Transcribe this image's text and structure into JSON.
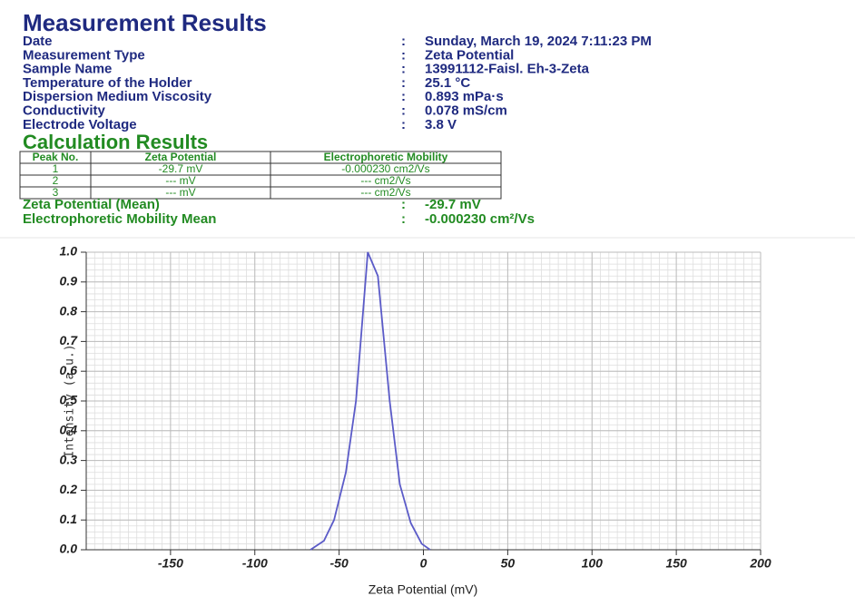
{
  "header": {
    "title": "Measurement Results",
    "separator": ":"
  },
  "info": [
    {
      "label": "Date",
      "value": "Sunday,  March  19, 2024 7:11:23 PM"
    },
    {
      "label": "Measurement Type",
      "value": "Zeta Potential"
    },
    {
      "label": "Sample Name",
      "value": "13991112-Faisl. Eh-3-Zeta"
    },
    {
      "label": "Temperature of the Holder",
      "value": "25.1 °C"
    },
    {
      "label": "Dispersion Medium Viscosity",
      "value": "0.893 mPa·s"
    },
    {
      "label": "Conductivity",
      "value": "0.078 mS/cm"
    },
    {
      "label": "Electrode Voltage",
      "value": "3.8 V"
    }
  ],
  "calculation": {
    "title": "Calculation Results",
    "table": {
      "header": [
        "Peak No.",
        "Zeta Potential",
        "Electrophoretic Mobility"
      ],
      "rows": [
        [
          "1",
          "-29.7 mV",
          "-0.000230 cm2/Vs"
        ],
        [
          "2",
          "--- mV",
          "--- cm2/Vs"
        ],
        [
          "3",
          "--- mV",
          "--- cm2/Vs"
        ]
      ]
    },
    "means": [
      {
        "label": "Zeta Potential (Mean)",
        "value": "-29.7 mV"
      },
      {
        "label": "Electrophoretic Mobility Mean",
        "value": "-0.000230 cm²/Vs"
      }
    ]
  },
  "chart_data": {
    "type": "line",
    "x_label": "Zeta Potential (mV)",
    "y_label": "Intensity (a.u.)",
    "x": [
      -67,
      -59,
      -53,
      -46,
      -40,
      -33,
      -27,
      -20,
      -14,
      -7.5,
      -1,
      4
    ],
    "values": [
      0,
      0.03,
      0.1,
      0.26,
      0.5,
      1.0,
      0.92,
      0.5,
      0.22,
      0.09,
      0.02,
      0
    ],
    "color": "#5b5bc8",
    "xlim": [
      -200,
      200
    ],
    "xticks": [
      -150,
      -100,
      -50,
      0,
      50,
      100,
      150,
      200
    ],
    "ylim": [
      0,
      1
    ],
    "yticks": [
      {
        "value": 0,
        "label": "0.0"
      },
      0.1,
      0.2,
      0.3,
      0.4,
      0.5,
      0.6,
      0.7,
      0.8,
      0.9,
      {
        "value": 1,
        "label": "1.0"
      }
    ],
    "grid": true
  }
}
